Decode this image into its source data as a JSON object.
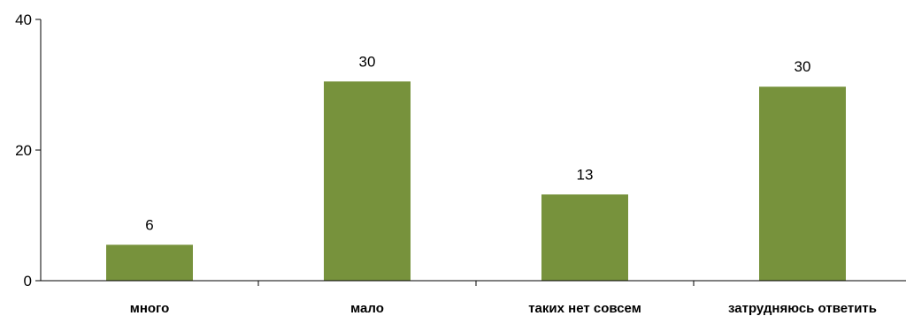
{
  "chart_data": {
    "type": "bar",
    "title": "",
    "xlabel": "",
    "ylabel": "",
    "categories": [
      "много",
      "мало",
      "таких нет совсем",
      "затрудняюсь ответить"
    ],
    "values": [
      5.5,
      30.5,
      13.2,
      29.7
    ],
    "data_labels": [
      "6",
      "30",
      "13",
      "30"
    ],
    "ylim": [
      0,
      40
    ],
    "yticks": [
      0,
      20,
      40
    ],
    "ytick_labels": [
      "0",
      "20",
      "40"
    ],
    "bar_color": "#77923c",
    "grid": false,
    "legend": "none"
  }
}
